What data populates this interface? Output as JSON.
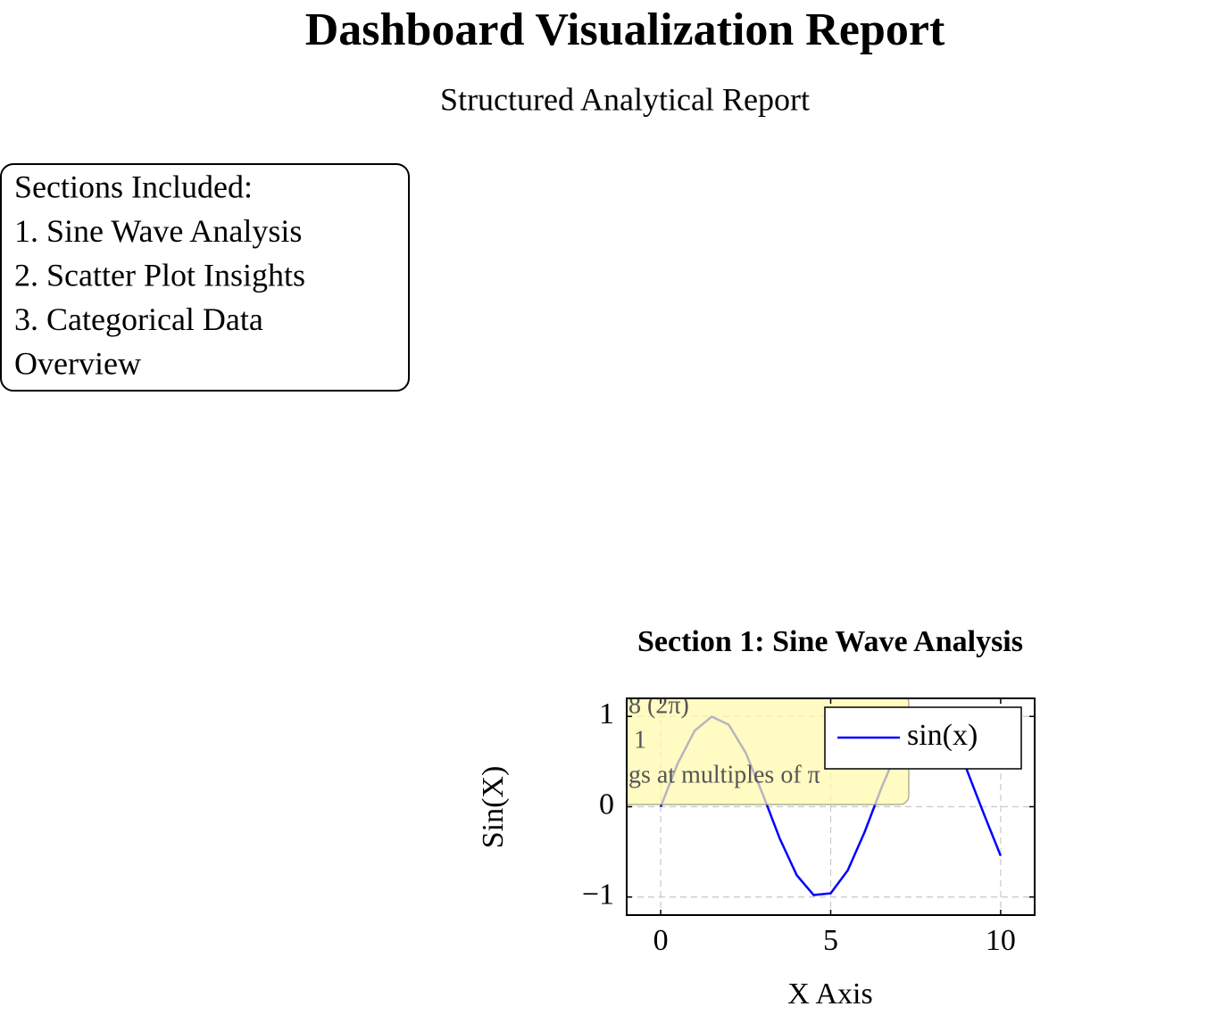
{
  "header": {
    "title": "Dashboard Visualization Report",
    "subtitle": "Structured Analytical Report"
  },
  "sections": [
    "Sections Included:",
    "1. Sine Wave Analysis",
    "2. Scatter Plot Insights",
    "3. Categorical Data",
    "Overview"
  ],
  "chart_data": {
    "type": "line",
    "title": "Section 1: Sine Wave Analysis",
    "x_label": "X Axis",
    "y_label": "Sin(X)",
    "x": [
      0,
      0.5,
      1,
      1.5,
      2,
      2.5,
      3,
      3.5,
      4,
      4.5,
      5,
      5.5,
      6,
      6.5,
      7,
      7.5,
      8,
      8.5,
      9,
      9.5,
      10
    ],
    "series": [
      {
        "name": "sin(x)",
        "color": "#0000ff",
        "values": [
          0,
          0.479,
          0.841,
          0.997,
          0.909,
          0.598,
          0.141,
          -0.351,
          -0.757,
          -0.978,
          -0.959,
          -0.706,
          -0.279,
          0.215,
          0.657,
          0.938,
          0.989,
          0.798,
          0.412,
          -0.075,
          -0.544
        ]
      }
    ],
    "xlim": [
      -1,
      11
    ],
    "ylim": [
      -1.2,
      1.2
    ],
    "xticks": [
      0,
      5,
      10
    ],
    "yticks": [
      {
        "value": -1,
        "label": "−1"
      },
      0,
      1
    ],
    "grid": true,
    "legend": "upper right",
    "annotation": [
      "8 (2π)",
      "1",
      "gs at multiples of π"
    ]
  }
}
